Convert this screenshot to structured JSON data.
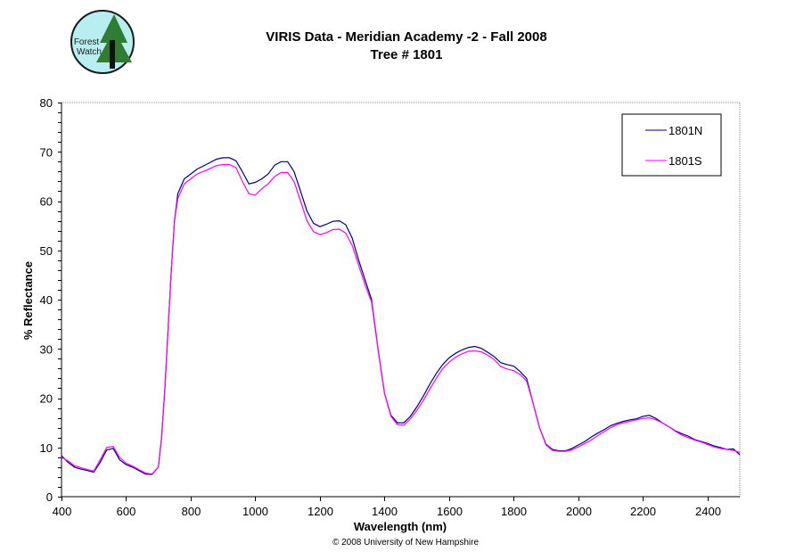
{
  "logo": {
    "text": "Forest Watch"
  },
  "chart_data": {
    "type": "line",
    "title": "VIRIS Data - Meridian Academy -2 - Fall 2008",
    "subtitle": "Tree # 1801",
    "xlabel": "Wavelength (nm)",
    "ylabel": "% Reflectance",
    "xlim": [
      400,
      2500
    ],
    "ylim": [
      0,
      80
    ],
    "xticks": [
      400,
      600,
      800,
      1000,
      1200,
      1400,
      1600,
      1800,
      2000,
      2200,
      2400
    ],
    "yticks": [
      0,
      10,
      20,
      30,
      40,
      50,
      60,
      70,
      80
    ],
    "grid": false,
    "legend_position": "top-right",
    "x": [
      400,
      420,
      440,
      460,
      480,
      500,
      520,
      540,
      560,
      580,
      600,
      620,
      640,
      660,
      680,
      700,
      710,
      720,
      730,
      740,
      750,
      760,
      780,
      800,
      820,
      850,
      880,
      900,
      920,
      940,
      960,
      980,
      1000,
      1020,
      1040,
      1060,
      1080,
      1100,
      1120,
      1140,
      1160,
      1180,
      1200,
      1220,
      1240,
      1260,
      1280,
      1300,
      1320,
      1340,
      1360,
      1380,
      1400,
      1420,
      1440,
      1460,
      1480,
      1500,
      1520,
      1540,
      1560,
      1580,
      1600,
      1620,
      1640,
      1660,
      1680,
      1700,
      1720,
      1740,
      1760,
      1780,
      1800,
      1820,
      1840,
      1860,
      1880,
      1900,
      1920,
      1940,
      1960,
      1980,
      2000,
      2020,
      2040,
      2060,
      2080,
      2100,
      2120,
      2140,
      2160,
      2180,
      2200,
      2220,
      2240,
      2260,
      2280,
      2300,
      2320,
      2340,
      2360,
      2380,
      2400,
      2420,
      2440,
      2460,
      2480,
      2500
    ],
    "series": [
      {
        "name": "1801N",
        "color": "#000080",
        "values": [
          8.3,
          7,
          6,
          5.6,
          5.3,
          5.0,
          7.0,
          9.5,
          9.8,
          7.5,
          6.5,
          6.0,
          5.3,
          4.6,
          4.5,
          6,
          12,
          22,
          34,
          46,
          56,
          61.5,
          64.5,
          65.5,
          66.5,
          67.5,
          68.5,
          68.8,
          68.8,
          68.2,
          66,
          63.5,
          63.8,
          64.5,
          65.5,
          67.3,
          68,
          68,
          66,
          62,
          58,
          55.5,
          54.8,
          55.3,
          55.9,
          56,
          55.2,
          52.5,
          48,
          44,
          40,
          30,
          21,
          16.5,
          15,
          15,
          16.3,
          18.2,
          20.4,
          22.8,
          25,
          26.8,
          28.2,
          29.1,
          29.8,
          30.3,
          30.5,
          30.1,
          29.3,
          28.4,
          27.2,
          26.8,
          26.5,
          25.4,
          24,
          19,
          14,
          10.6,
          9.6,
          9.3,
          9.3,
          9.8,
          10.5,
          11.2,
          12.1,
          12.9,
          13.6,
          14.4,
          14.9,
          15.3,
          15.6,
          15.8,
          16.3,
          16.5,
          15.9,
          15.0,
          14.2,
          13.4,
          12.8,
          12.3,
          11.6,
          11.2,
          10.8,
          10.3,
          10.0,
          9.6,
          9.7,
          8.5
        ]
      },
      {
        "name": "1801S",
        "color": "#ff00ff",
        "values": [
          8.0,
          7.3,
          6.3,
          5.9,
          5.5,
          5.2,
          7.5,
          10.0,
          10.2,
          8.0,
          6.8,
          6.2,
          5.5,
          4.8,
          4.6,
          6,
          12,
          22,
          34,
          46,
          56,
          60.5,
          63.5,
          64.5,
          65.5,
          66.3,
          67.2,
          67.4,
          67.4,
          66.8,
          64,
          61.5,
          61.2,
          62.5,
          63.5,
          65,
          65.8,
          65.8,
          64,
          60,
          56,
          53.8,
          53.2,
          53.6,
          54.2,
          54.3,
          53.5,
          51,
          47,
          43,
          39.5,
          30,
          21,
          16.3,
          14.6,
          14.5,
          15.8,
          17.5,
          19.5,
          21.8,
          24,
          26,
          27.3,
          28.3,
          29,
          29.5,
          29.6,
          29.4,
          28.7,
          27.8,
          26.4,
          25.9,
          25.6,
          24.8,
          23.5,
          19,
          14,
          10.5,
          9.4,
          9.2,
          9.2,
          9.5,
          10.1,
          10.8,
          11.5,
          12.4,
          13.2,
          14.0,
          14.6,
          15.0,
          15.3,
          15.6,
          15.9,
          16.0,
          15.6,
          15.0,
          14.2,
          13.3,
          12.5,
          12.0,
          11.5,
          11.1,
          10.6,
          10.1,
          9.8,
          9.6,
          9.4,
          9.0
        ]
      }
    ]
  },
  "footer": {
    "copyright": "© 2008 University of New Hampshire"
  }
}
